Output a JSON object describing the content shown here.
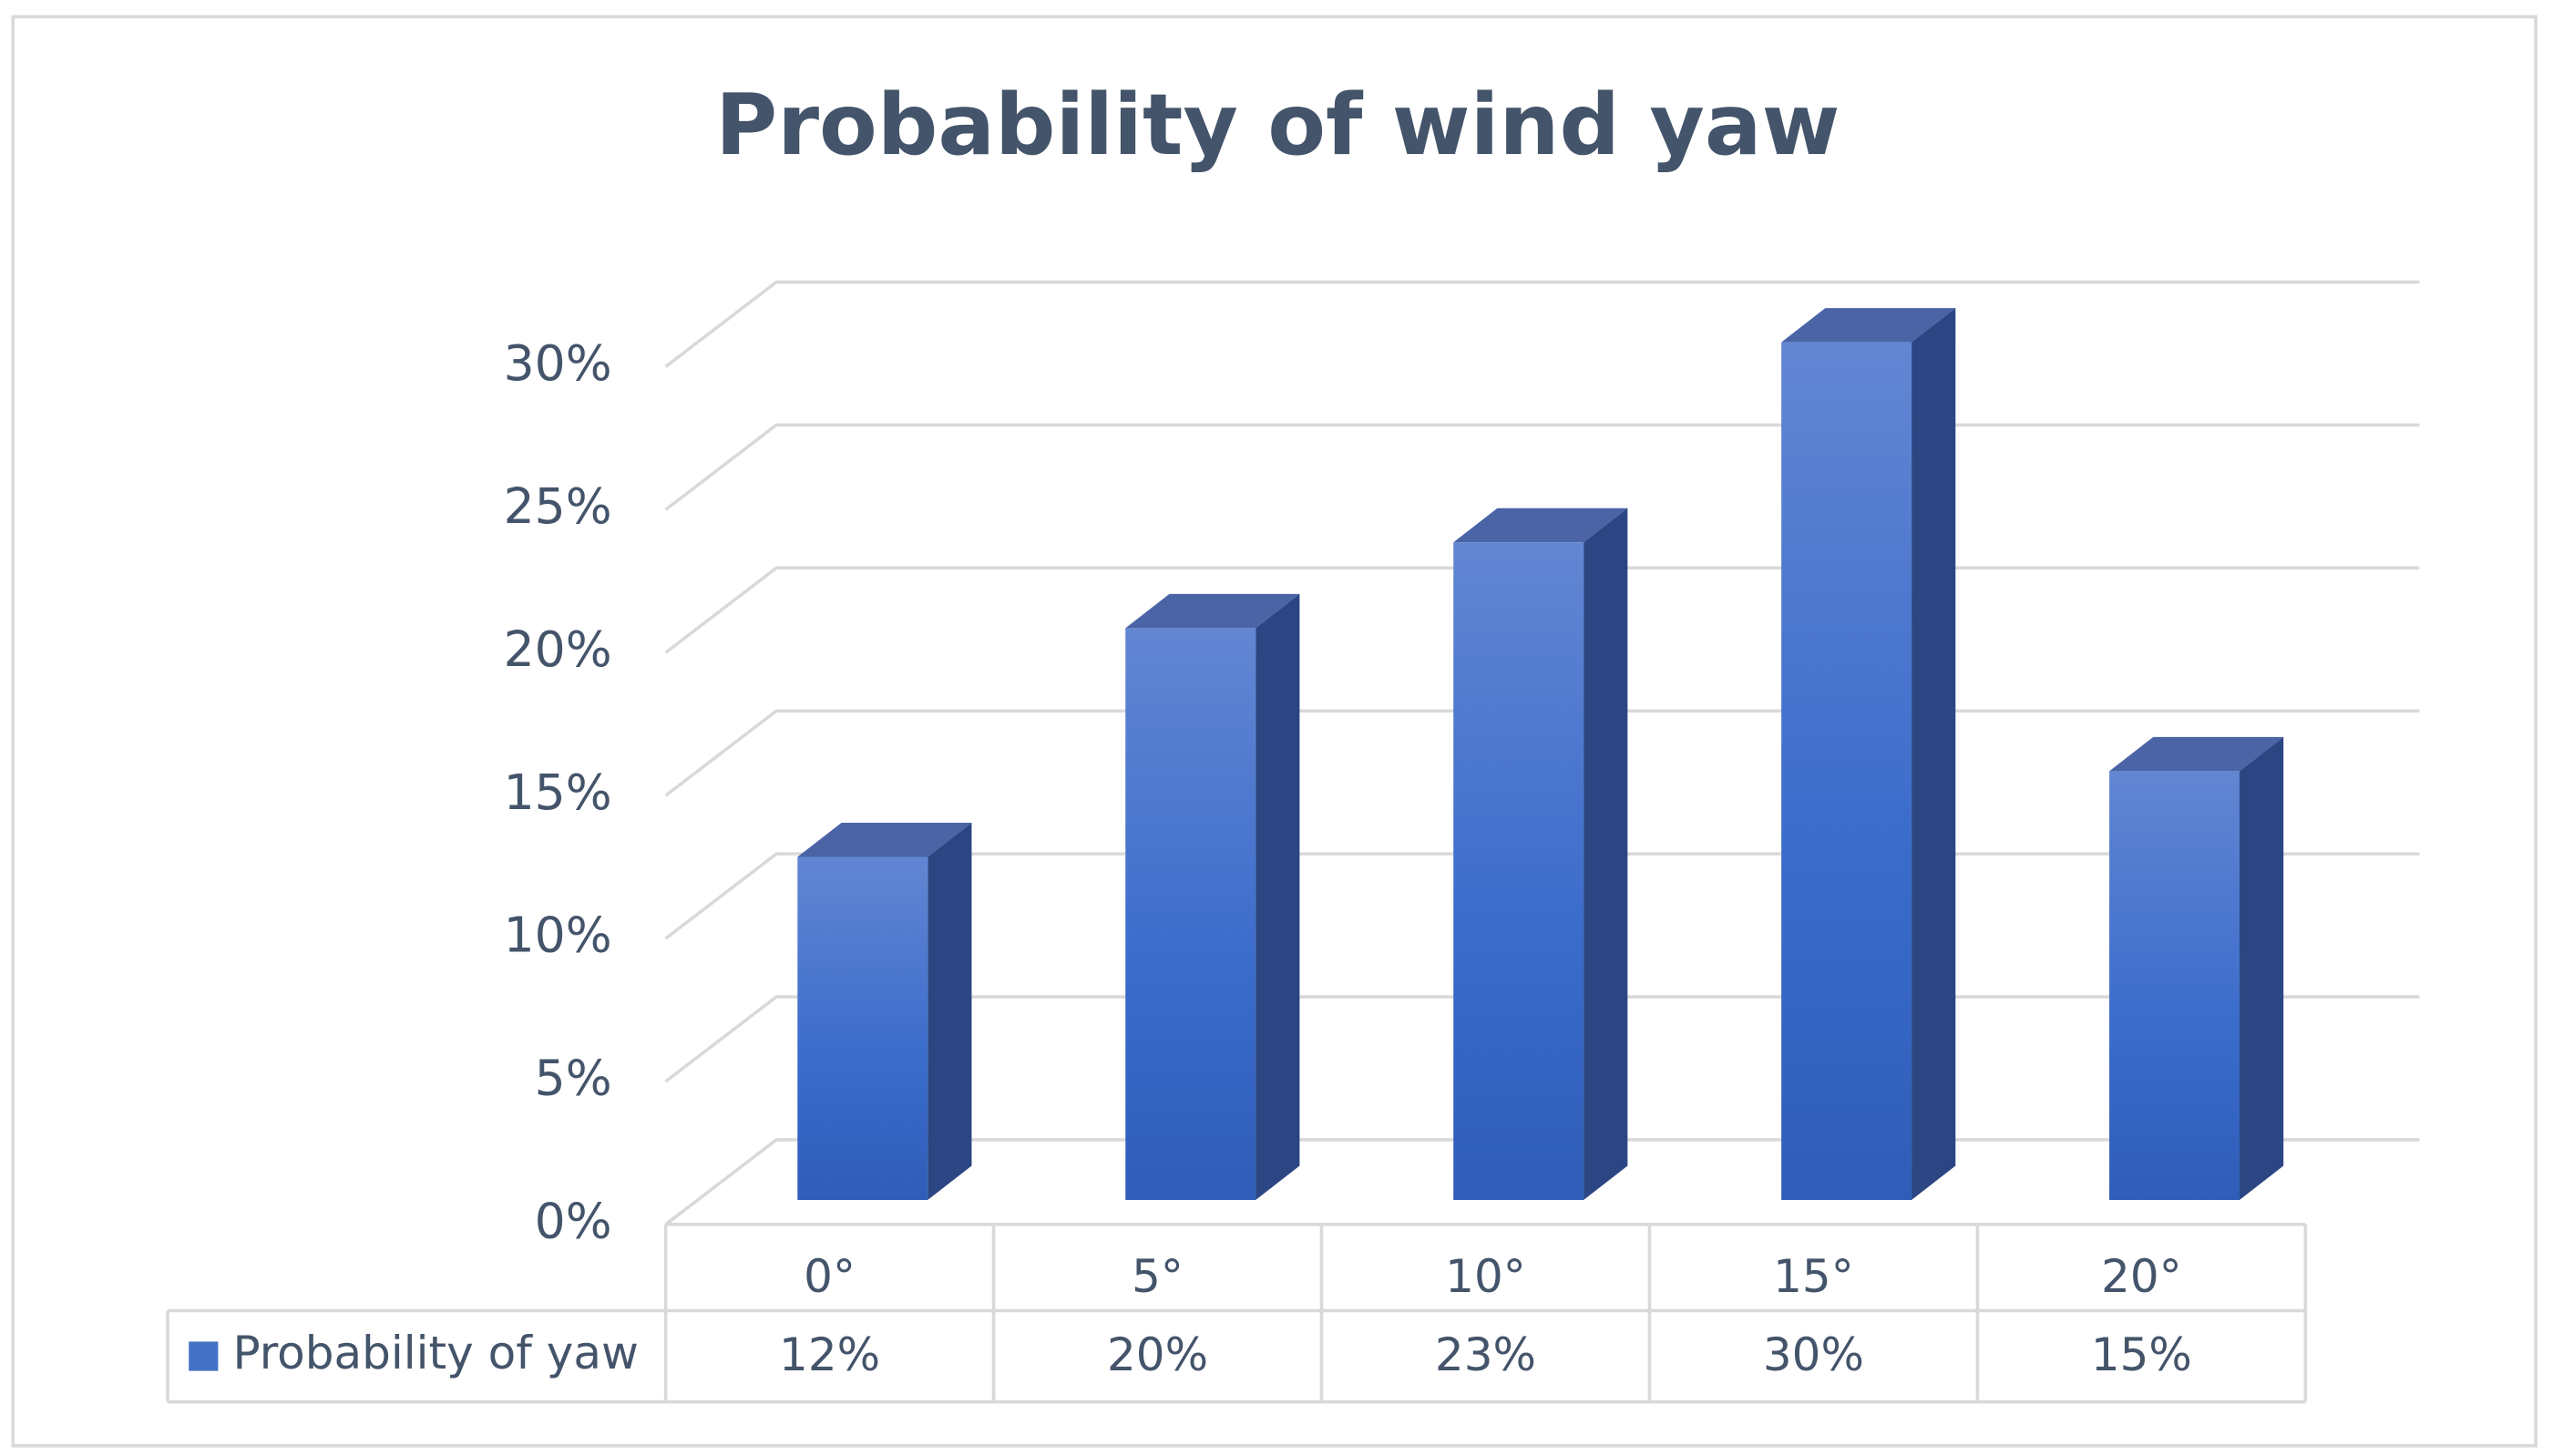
{
  "chart_data": {
    "type": "bar3d",
    "title": "Probability of wind yaw",
    "categories": [
      "0°",
      "5°",
      "10°",
      "15°",
      "20°"
    ],
    "series": [
      {
        "name": "Probability of yaw",
        "color": "#4472c4",
        "values": [
          12,
          20,
          23,
          30,
          15
        ],
        "value_labels": [
          "12%",
          "20%",
          "23%",
          "30%",
          "15%"
        ]
      }
    ],
    "ylim": [
      0,
      30
    ],
    "yticks": [
      {
        "value": 0,
        "label": "0%"
      },
      {
        "value": 5,
        "label": "5%"
      },
      {
        "value": 10,
        "label": "10%"
      },
      {
        "value": 15,
        "label": "15%"
      },
      {
        "value": 20,
        "label": "20%"
      },
      {
        "value": 25,
        "label": "25%"
      },
      {
        "value": 30,
        "label": "30%"
      }
    ],
    "grid": true,
    "data_table": true
  }
}
